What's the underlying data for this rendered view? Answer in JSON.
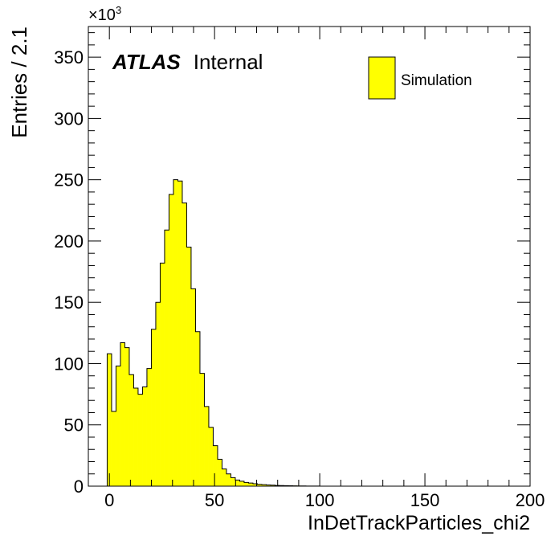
{
  "chart_data": {
    "type": "bar",
    "style": "histogram",
    "xlabel": "InDetTrackParticles_chi2",
    "ylabel": "Entries / 2.1",
    "y_exponent_label": "×10",
    "y_exponent_power": "3",
    "xlim": [
      -10,
      200
    ],
    "ylim": [
      0,
      375
    ],
    "x_ticks": [
      "0",
      "50",
      "100",
      "150",
      "200"
    ],
    "y_ticks": [
      "0",
      "50",
      "100",
      "150",
      "200",
      "250",
      "300",
      "350"
    ],
    "bin_width": 2.1,
    "x_start": -1.05,
    "values": [
      108,
      61,
      98,
      117,
      113,
      91,
      80,
      75,
      81,
      96,
      128,
      150,
      182,
      209,
      238,
      250,
      249,
      231,
      195,
      161,
      126,
      92,
      65,
      48,
      33,
      22,
      14,
      10,
      7,
      5,
      4,
      3,
      2.5,
      2,
      1.5,
      1.2,
      1,
      0.8,
      0.6,
      0.5,
      0.4,
      0.3,
      0.25,
      0.2,
      0.15,
      0.1,
      0.08,
      0.05
    ],
    "series": [
      {
        "name": "Simulation",
        "color": "#ffff00"
      }
    ],
    "legend_position": "top-right",
    "grid": false
  },
  "atlas_label": {
    "bold": "ATLAS",
    "status": "Internal"
  },
  "colors": {
    "fill": "#ffff00",
    "line": "#000000"
  }
}
